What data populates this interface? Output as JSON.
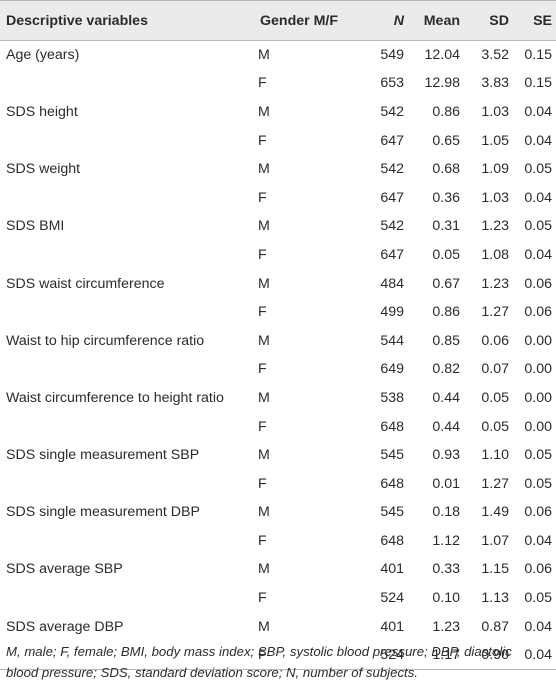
{
  "table": {
    "headers": {
      "variable": "Descriptive variables",
      "gender": "Gender M/F",
      "n": "N",
      "mean": "Mean",
      "sd": "SD",
      "se": "SE"
    },
    "rows": [
      {
        "variable": "Age (years)",
        "gender": "M",
        "n": "549",
        "mean": "12.04",
        "sd": "3.52",
        "se": "0.15"
      },
      {
        "variable": "",
        "gender": "F",
        "n": "653",
        "mean": "12.98",
        "sd": "3.83",
        "se": "0.15"
      },
      {
        "variable": "SDS height",
        "gender": "M",
        "n": "542",
        "mean": "0.86",
        "sd": "1.03",
        "se": "0.04"
      },
      {
        "variable": "",
        "gender": "F",
        "n": "647",
        "mean": "0.65",
        "sd": "1.05",
        "se": "0.04"
      },
      {
        "variable": "SDS weight",
        "gender": "M",
        "n": "542",
        "mean": "0.68",
        "sd": "1.09",
        "se": "0.05"
      },
      {
        "variable": "",
        "gender": "F",
        "n": "647",
        "mean": "0.36",
        "sd": "1.03",
        "se": "0.04"
      },
      {
        "variable": "SDS BMI",
        "gender": "M",
        "n": "542",
        "mean": "0.31",
        "sd": "1.23",
        "se": "0.05"
      },
      {
        "variable": "",
        "gender": "F",
        "n": "647",
        "mean": "0.05",
        "sd": "1.08",
        "se": "0.04"
      },
      {
        "variable": "SDS waist circumference",
        "gender": "M",
        "n": "484",
        "mean": "0.67",
        "sd": "1.23",
        "se": "0.06"
      },
      {
        "variable": "",
        "gender": "F",
        "n": "499",
        "mean": "0.86",
        "sd": "1.27",
        "se": "0.06"
      },
      {
        "variable": "Waist to hip circumference ratio",
        "gender": "M",
        "n": "544",
        "mean": "0.85",
        "sd": "0.06",
        "se": "0.00"
      },
      {
        "variable": "",
        "gender": "F",
        "n": "649",
        "mean": "0.82",
        "sd": "0.07",
        "se": "0.00"
      },
      {
        "variable": "Waist circumference to height ratio",
        "gender": "M",
        "n": "538",
        "mean": "0.44",
        "sd": "0.05",
        "se": "0.00"
      },
      {
        "variable": "",
        "gender": "F",
        "n": "648",
        "mean": "0.44",
        "sd": "0.05",
        "se": "0.00"
      },
      {
        "variable": "SDS single measurement SBP",
        "gender": "M",
        "n": "545",
        "mean": "0.93",
        "sd": "1.10",
        "se": "0.05"
      },
      {
        "variable": "",
        "gender": "F",
        "n": "648",
        "mean": "0.01",
        "sd": "1.27",
        "se": "0.05"
      },
      {
        "variable": "SDS single measurement DBP",
        "gender": "M",
        "n": "545",
        "mean": "0.18",
        "sd": "1.49",
        "se": "0.06"
      },
      {
        "variable": "",
        "gender": "F",
        "n": "648",
        "mean": "1.12",
        "sd": "1.07",
        "se": "0.04"
      },
      {
        "variable": "SDS average SBP",
        "gender": "M",
        "n": "401",
        "mean": "0.33",
        "sd": "1.15",
        "se": "0.06"
      },
      {
        "variable": "",
        "gender": "F",
        "n": "524",
        "mean": "0.10",
        "sd": "1.13",
        "se": "0.05"
      },
      {
        "variable": "SDS average DBP",
        "gender": "M",
        "n": "401",
        "mean": "1.23",
        "sd": "0.87",
        "se": "0.04"
      },
      {
        "variable": "",
        "gender": "F",
        "n": "524",
        "mean": "1.17",
        "sd": "0.90",
        "se": "0.04"
      }
    ]
  },
  "footnote": "M, male; F, female; BMI, body mass index; SBP, systolic blood pressure; DBP, diastolic blood pressure; SDS, standard deviation score; N, number of subjects.",
  "colors": {
    "header_background": "#ebebeb",
    "text": "#2b2b2b",
    "rule": "#b8b8b8"
  }
}
